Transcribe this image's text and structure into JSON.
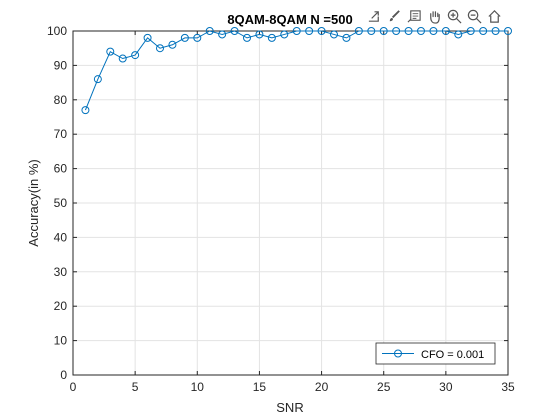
{
  "chart_data": {
    "type": "line",
    "title": "8QAM-8QAM N =500",
    "xlabel": "SNR",
    "ylabel": "Accuracy(in %)",
    "xlim": [
      0,
      35
    ],
    "ylim": [
      0,
      100
    ],
    "xticks": [
      0,
      5,
      10,
      15,
      20,
      25,
      30,
      35
    ],
    "yticks": [
      0,
      10,
      20,
      30,
      40,
      50,
      60,
      70,
      80,
      90,
      100
    ],
    "grid": true,
    "legend_position": "bottom-right",
    "series": [
      {
        "name": "CFO = 0.001",
        "color": "#0072BD",
        "marker": "circle",
        "x": [
          1,
          2,
          3,
          4,
          5,
          6,
          7,
          8,
          9,
          10,
          11,
          12,
          13,
          14,
          15,
          16,
          17,
          18,
          19,
          20,
          21,
          22,
          23,
          24,
          25,
          26,
          27,
          28,
          29,
          30,
          31,
          32,
          33,
          34,
          35
        ],
        "y": [
          77,
          86,
          94,
          92,
          93,
          98,
          95,
          96,
          98,
          98,
          100,
          99,
          100,
          98,
          99,
          98,
          99,
          100,
          100,
          100,
          99,
          98,
          100,
          100,
          100,
          100,
          100,
          100,
          100,
          100,
          99,
          100,
          100,
          100,
          100
        ]
      }
    ]
  },
  "toolbar": {
    "icons": [
      "export-icon",
      "brush-icon",
      "datatip-icon",
      "pan-icon",
      "zoom-in-icon",
      "zoom-out-icon",
      "home-icon"
    ]
  }
}
